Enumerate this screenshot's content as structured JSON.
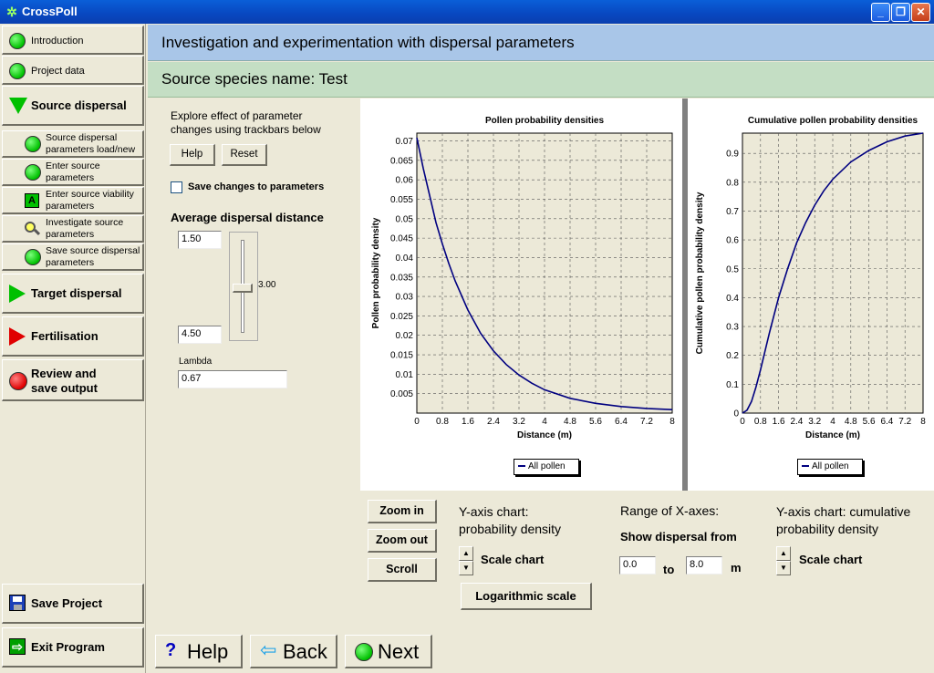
{
  "window": {
    "title": "CrossPoll",
    "min": "_",
    "max": "❐",
    "close": "✕"
  },
  "nav": {
    "introduction": "Introduction",
    "project_data": "Project data",
    "source_dispersal": "Source dispersal",
    "sub_load": [
      "Source dispersal",
      "parameters load/new"
    ],
    "sub_enter": [
      "Enter source",
      "parameters"
    ],
    "sub_viability": [
      "Enter source viability",
      "parameters"
    ],
    "sub_investigate": [
      "Investigate source",
      "parameters"
    ],
    "sub_save": [
      "Save source dispersal",
      "parameters"
    ],
    "target_dispersal": "Target dispersal",
    "fertilisation": "Fertilisation",
    "review": [
      "Review and",
      "save output"
    ],
    "save_project": "Save Project",
    "exit_program": "Exit Program",
    "abox_letter": "A"
  },
  "header": {
    "title": "Investigation and experimentation with dispersal parameters",
    "species": "Source species name: Test"
  },
  "controls": {
    "explore": [
      "Explore effect of parameter",
      "changes using trackbars below"
    ],
    "help": "Help",
    "reset": "Reset",
    "save_changes": "Save changes to parameters",
    "avg_dispersal": "Average dispersal distance",
    "min_value": "1.50",
    "max_value": "4.50",
    "current_value": "3.00",
    "lambda_label": "Lambda",
    "lambda_value": "0.67"
  },
  "chart_data": [
    {
      "type": "line",
      "title": "Pollen probability densities",
      "xlabel": "Distance (m)",
      "ylabel": "Pollen probability density",
      "xlim": [
        0,
        8
      ],
      "ylim": [
        0,
        0.072
      ],
      "xticks": [
        "0",
        "0.8",
        "1.6",
        "2.4",
        "3.2",
        "4",
        "4.8",
        "5.6",
        "6.4",
        "7.2",
        "8"
      ],
      "yticks": [
        "0.005",
        "0.01",
        "0.015",
        "0.02",
        "0.025",
        "0.03",
        "0.035",
        "0.04",
        "0.045",
        "0.05",
        "0.055",
        "0.06",
        "0.065",
        "0.07"
      ],
      "grid": true,
      "legend": "bottom-center",
      "series": [
        {
          "name": "All pollen",
          "color": "#000080",
          "x": [
            0,
            0.2,
            0.4,
            0.6,
            0.8,
            1.0,
            1.2,
            1.6,
            2.0,
            2.4,
            2.8,
            3.2,
            3.6,
            4.0,
            4.8,
            5.6,
            6.4,
            7.2,
            8.0
          ],
          "y": [
            0.0708,
            0.063,
            0.056,
            0.049,
            0.0435,
            0.0385,
            0.034,
            0.0265,
            0.0205,
            0.016,
            0.0125,
            0.0098,
            0.0077,
            0.006,
            0.0038,
            0.0025,
            0.0017,
            0.0012,
            0.0009
          ]
        }
      ]
    },
    {
      "type": "line",
      "title": "Cumulative pollen probability densities",
      "xlabel": "Distance (m)",
      "ylabel": "Cumulative pollen probability density",
      "xlim": [
        0,
        8
      ],
      "ylim": [
        0,
        0.97
      ],
      "xticks": [
        "0",
        "0.8",
        "1.6",
        "2.4",
        "3.2",
        "4",
        "4.8",
        "5.6",
        "6.4",
        "7.2",
        "8"
      ],
      "yticks": [
        "0",
        "0.1",
        "0.2",
        "0.3",
        "0.4",
        "0.5",
        "0.6",
        "0.7",
        "0.8",
        "0.9"
      ],
      "grid": true,
      "legend": "bottom-center",
      "series": [
        {
          "name": "All pollen",
          "color": "#000080",
          "x": [
            0,
            0.2,
            0.4,
            0.6,
            0.8,
            1.2,
            1.6,
            2.0,
            2.4,
            2.8,
            3.2,
            3.6,
            4.0,
            4.8,
            5.6,
            6.4,
            7.2,
            8.0
          ],
          "y": [
            0,
            0.01,
            0.04,
            0.09,
            0.15,
            0.28,
            0.4,
            0.5,
            0.59,
            0.66,
            0.72,
            0.77,
            0.81,
            0.87,
            0.91,
            0.94,
            0.96,
            0.97
          ]
        }
      ]
    }
  ],
  "bottom": {
    "zoom_in": "Zoom in",
    "zoom_out": "Zoom out",
    "scroll": "Scroll",
    "yaxis1": [
      "Y-axis chart:",
      "probability density"
    ],
    "scale_chart": "Scale chart",
    "log_scale": "Logarithmic scale",
    "range_title": "Range of X-axes:",
    "show_from": "Show dispersal from",
    "from_value": "0.0",
    "to": "to",
    "to_value": "8.0",
    "unit": "m",
    "yaxis2": [
      "Y-axis chart: cumulative",
      "probability density"
    ],
    "spin_up": "▲",
    "spin_down": "▼"
  },
  "footer": {
    "help": "Help",
    "back": "Back",
    "next": "Next",
    "help_glyph": "?",
    "back_glyph": "⇦"
  }
}
